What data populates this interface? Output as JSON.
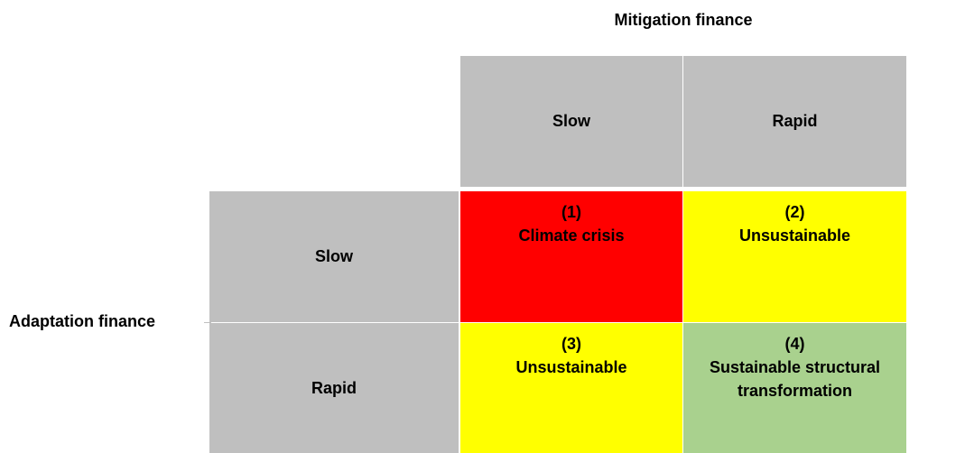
{
  "column_axis": {
    "label": "Mitigation finance",
    "headers": [
      "Slow",
      "Rapid"
    ]
  },
  "row_axis": {
    "label": "Adaptation finance",
    "headers": [
      "Slow",
      "Rapid"
    ]
  },
  "cells": [
    [
      {
        "number": "(1)",
        "label": "Climate crisis"
      },
      {
        "number": "(2)",
        "label": "Unsustainable"
      }
    ],
    [
      {
        "number": "(3)",
        "label": "Unsustainable"
      },
      {
        "number": "(4)",
        "label": "Sustainable structural transformation"
      }
    ]
  ]
}
